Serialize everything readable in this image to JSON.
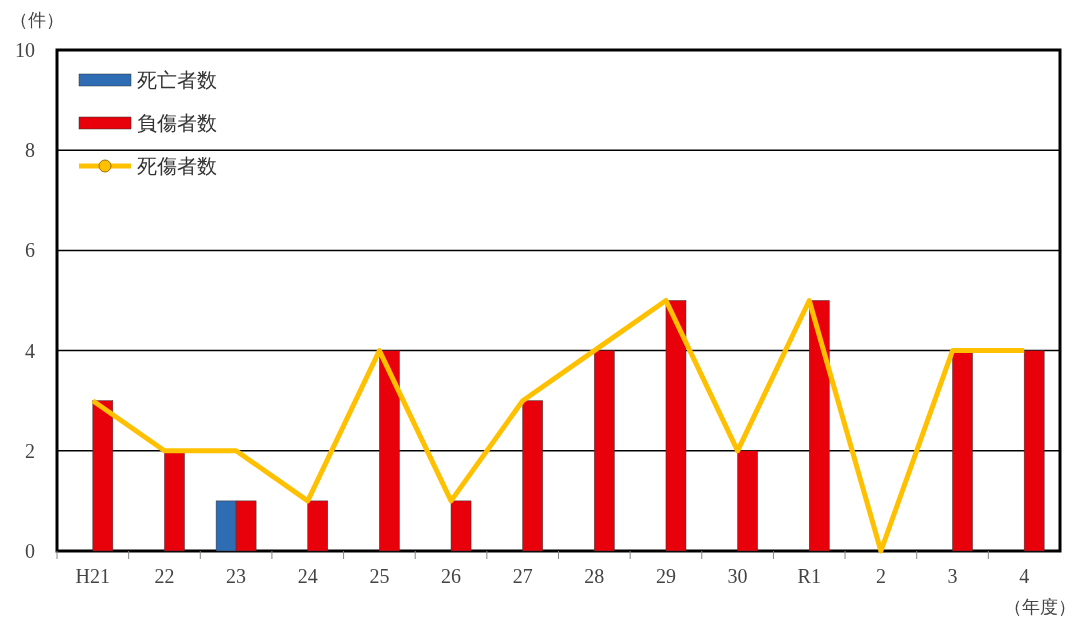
{
  "chart_data": {
    "type": "bar",
    "ylabel": "（件）",
    "xlabel": "（年度）",
    "categories": [
      "H21",
      "22",
      "23",
      "24",
      "25",
      "26",
      "27",
      "28",
      "29",
      "30",
      "R1",
      "2",
      "3",
      "4"
    ],
    "series": [
      {
        "name": "死亡者数",
        "color": "#2e6db4",
        "values": [
          0,
          0,
          1,
          0,
          0,
          0,
          0,
          0,
          0,
          0,
          0,
          0,
          0,
          0
        ]
      },
      {
        "name": "負傷者数",
        "color": "#e8000b",
        "values": [
          3,
          2,
          1,
          1,
          4,
          1,
          3,
          4,
          5,
          2,
          5,
          0,
          4,
          4
        ]
      },
      {
        "name": "死傷者数",
        "type": "line",
        "color": "#ffc000",
        "values": [
          3,
          2,
          2,
          1,
          4,
          1,
          3,
          4,
          5,
          2,
          5,
          0,
          4,
          4
        ]
      }
    ],
    "ylim": [
      0,
      10
    ],
    "yticks": [
      0,
      2,
      4,
      6,
      8,
      10
    ],
    "grid": "y",
    "legend": "top left",
    "marker": "none"
  }
}
